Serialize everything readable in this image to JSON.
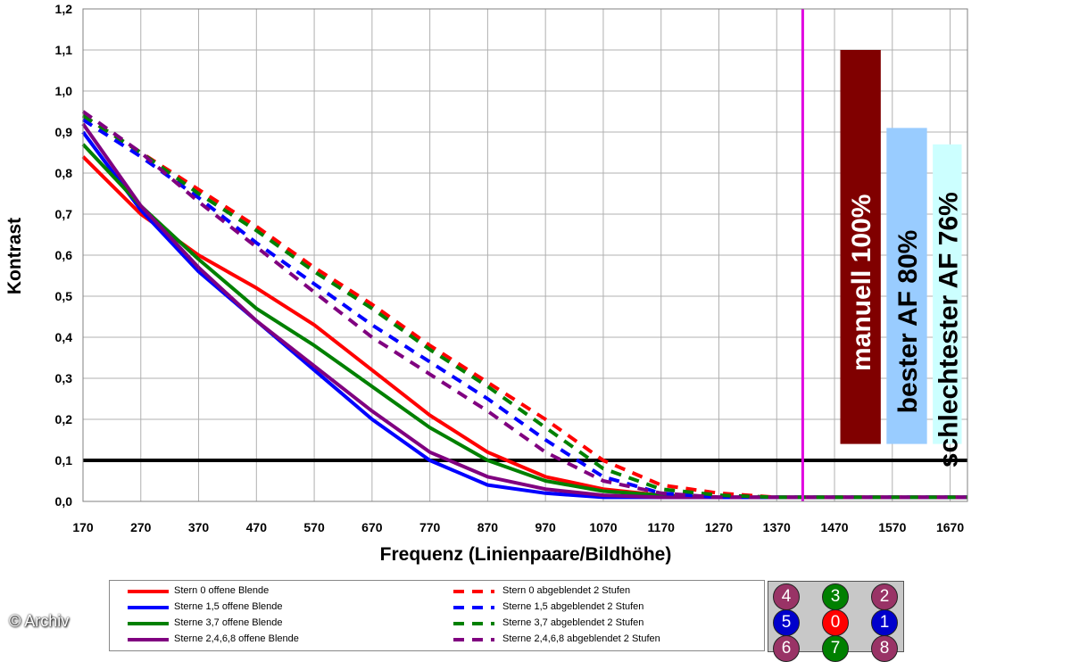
{
  "chart_data": {
    "type": "line",
    "xlabel": "Frequenz (Linienpaare/Bildhöhe)",
    "ylabel": "Kontrast",
    "xlim": [
      170,
      1700
    ],
    "ylim": [
      0,
      1.2
    ],
    "x_ticks": [
      "170",
      "270",
      "370",
      "470",
      "570",
      "670",
      "770",
      "870",
      "970",
      "1070",
      "1170",
      "1270",
      "1370",
      "1470",
      "1570",
      "1670"
    ],
    "y_ticks": [
      "0,0",
      "0,1",
      "0,2",
      "0,3",
      "0,4",
      "0,5",
      "0,6",
      "0,7",
      "0,8",
      "0,9",
      "1,0",
      "1,1",
      "1,2"
    ],
    "x": [
      170,
      270,
      370,
      470,
      570,
      670,
      770,
      870,
      970,
      1070,
      1170,
      1270,
      1370,
      1470,
      1570,
      1670,
      1700
    ],
    "series": [
      {
        "name": "Stern 0 offene Blende",
        "color": "#ff0000",
        "dash": false,
        "values": [
          0.84,
          0.7,
          0.6,
          0.52,
          0.43,
          0.32,
          0.21,
          0.12,
          0.06,
          0.03,
          0.015,
          0.01,
          0.01,
          0.01,
          0.01,
          0.01,
          0.01
        ]
      },
      {
        "name": "Sterne 1,5 offene Blende",
        "color": "#0000ff",
        "dash": false,
        "values": [
          0.9,
          0.71,
          0.56,
          0.44,
          0.32,
          0.2,
          0.1,
          0.04,
          0.02,
          0.01,
          0.01,
          0.01,
          0.01,
          0.01,
          0.01,
          0.01,
          0.01
        ]
      },
      {
        "name": "Sterne 3,7 offene Blende",
        "color": "#008000",
        "dash": false,
        "values": [
          0.87,
          0.72,
          0.59,
          0.47,
          0.38,
          0.28,
          0.18,
          0.1,
          0.05,
          0.025,
          0.015,
          0.01,
          0.01,
          0.01,
          0.01,
          0.01,
          0.01
        ]
      },
      {
        "name": "Sterne 2,4,6,8 offene Blende",
        "color": "#800080",
        "dash": false,
        "values": [
          0.92,
          0.72,
          0.57,
          0.44,
          0.33,
          0.22,
          0.12,
          0.06,
          0.03,
          0.015,
          0.01,
          0.01,
          0.01,
          0.01,
          0.01,
          0.01,
          0.01
        ]
      },
      {
        "name": "Stern 0 abgeblendet 2 Stufen",
        "color": "#ff0000",
        "dash": true,
        "values": [
          0.94,
          0.85,
          0.76,
          0.67,
          0.57,
          0.48,
          0.38,
          0.29,
          0.2,
          0.1,
          0.04,
          0.02,
          0.01,
          0.01,
          0.01,
          0.01,
          0.01
        ]
      },
      {
        "name": "Sterne 1,5 abgeblendet 2 Stufen",
        "color": "#0000ff",
        "dash": true,
        "values": [
          0.93,
          0.84,
          0.74,
          0.63,
          0.53,
          0.43,
          0.34,
          0.25,
          0.15,
          0.06,
          0.02,
          0.01,
          0.01,
          0.01,
          0.01,
          0.01,
          0.01
        ]
      },
      {
        "name": "Sterne 3,7 abgeblendet 2 Stufen",
        "color": "#008000",
        "dash": true,
        "values": [
          0.94,
          0.85,
          0.75,
          0.66,
          0.56,
          0.47,
          0.37,
          0.28,
          0.18,
          0.08,
          0.03,
          0.015,
          0.01,
          0.01,
          0.01,
          0.01,
          0.01
        ]
      },
      {
        "name": "Sterne 2,4,6,8 abgeblendet 2 Stufen",
        "color": "#800080",
        "dash": true,
        "values": [
          0.95,
          0.85,
          0.73,
          0.62,
          0.51,
          0.4,
          0.31,
          0.22,
          0.12,
          0.05,
          0.02,
          0.01,
          0.01,
          0.01,
          0.01,
          0.01,
          0.01
        ]
      }
    ],
    "hline": {
      "y": 0.1,
      "color": "#000000"
    },
    "vline": {
      "x": 1415,
      "color": "#e000e0"
    },
    "bars": [
      {
        "label": "manuell 100%",
        "color": "#800000",
        "text_color": "#ffffff",
        "x0": 1480,
        "x1": 1550,
        "value": 1.1
      },
      {
        "label": "bester AF 80%",
        "color": "#99ccff",
        "text_color": "#000000",
        "x0": 1560,
        "x1": 1630,
        "value": 0.91
      },
      {
        "label": "schlechtester AF 76%",
        "color": "#ccffff",
        "text_color": "#000000",
        "x0": 1640,
        "x1": 1690,
        "value": 0.87
      }
    ],
    "grid": true,
    "legend_position": "bottom"
  },
  "legend": {
    "items": [
      {
        "label": "Stern 0 offene Blende",
        "color": "#ff0000",
        "dash": false
      },
      {
        "label": "Sterne 1,5 offene Blende",
        "color": "#0000ff",
        "dash": false
      },
      {
        "label": "Sterne 3,7 offene Blende",
        "color": "#008000",
        "dash": false
      },
      {
        "label": "Sterne 2,4,6,8 offene Blende",
        "color": "#800080",
        "dash": false
      },
      {
        "label": "Stern 0 abgeblendet 2 Stufen",
        "color": "#ff0000",
        "dash": true
      },
      {
        "label": "Sterne 1,5 abgeblendet 2 Stufen",
        "color": "#0000ff",
        "dash": true
      },
      {
        "label": "Sterne 3,7 abgeblendet 2 Stufen",
        "color": "#008000",
        "dash": true
      },
      {
        "label": "Sterne 2,4,6,8 abgeblendet 2 Stufen",
        "color": "#800080",
        "dash": true
      }
    ]
  },
  "badges": [
    {
      "label": "4",
      "color": "#993366"
    },
    {
      "label": "3",
      "color": "#008000"
    },
    {
      "label": "2",
      "color": "#993366"
    },
    {
      "label": "5",
      "color": "#0000cc"
    },
    {
      "label": "0",
      "color": "#ff0000"
    },
    {
      "label": "1",
      "color": "#0000cc"
    },
    {
      "label": "6",
      "color": "#993366"
    },
    {
      "label": "7",
      "color": "#008000"
    },
    {
      "label": "8",
      "color": "#993366"
    }
  ],
  "copyright": "© Archiv"
}
